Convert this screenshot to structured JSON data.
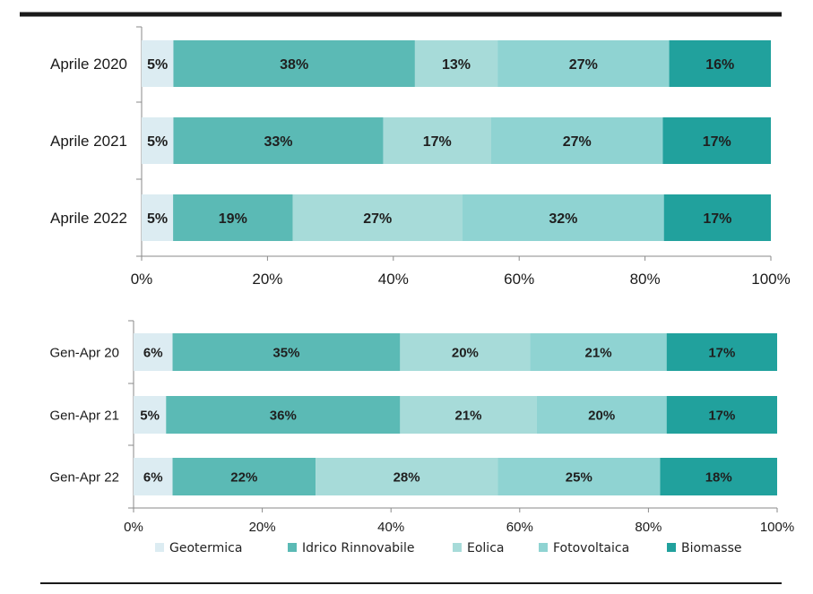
{
  "colors": {
    "Geotermica": "#dcecf2",
    "Idrico Rinnovabile": "#5bbab5",
    "Eolica": "#a7dbd9",
    "Fotovoltaica": "#8fd3d2",
    "Biomasse": "#21a19d"
  },
  "legend": [
    "Geotermica",
    "Idrico Rinnovabile",
    "Eolica",
    "Fotovoltaica",
    "Biomasse"
  ],
  "chart_data": [
    {
      "type": "bar",
      "orientation": "horizontal",
      "stacked": "percent",
      "categories": [
        "Aprile 2020",
        "Aprile 2021",
        "Aprile 2022"
      ],
      "series": [
        {
          "name": "Geotermica",
          "values": [
            5,
            5,
            5
          ]
        },
        {
          "name": "Idrico Rinnovabile",
          "values": [
            38,
            33,
            19
          ]
        },
        {
          "name": "Eolica",
          "values": [
            13,
            17,
            27
          ]
        },
        {
          "name": "Fotovoltaica",
          "values": [
            27,
            27,
            32
          ]
        },
        {
          "name": "Biomasse",
          "values": [
            16,
            17,
            17
          ]
        }
      ],
      "data_labels": [
        [
          "5%",
          "38%",
          "13%",
          "27%",
          "16%"
        ],
        [
          "5%",
          "33%",
          "17%",
          "27%",
          "17%"
        ],
        [
          "5%",
          "19%",
          "27%",
          "32%",
          "17%"
        ]
      ],
      "xticks": [
        "0%",
        "20%",
        "40%",
        "60%",
        "80%",
        "100%"
      ],
      "xlim": [
        0,
        100
      ],
      "grid": false
    },
    {
      "type": "bar",
      "orientation": "horizontal",
      "stacked": "percent",
      "categories": [
        "Gen-Apr 20",
        "Gen-Apr 21",
        "Gen-Apr 22"
      ],
      "series": [
        {
          "name": "Geotermica",
          "values": [
            6,
            5,
            6
          ]
        },
        {
          "name": "Idrico Rinnovabile",
          "values": [
            35,
            36,
            22
          ]
        },
        {
          "name": "Eolica",
          "values": [
            20,
            21,
            28
          ]
        },
        {
          "name": "Fotovoltaica",
          "values": [
            21,
            20,
            25
          ]
        },
        {
          "name": "Biomasse",
          "values": [
            17,
            17,
            18
          ]
        }
      ],
      "data_labels": [
        [
          "6%",
          "35%",
          "20%",
          "21%",
          "17%"
        ],
        [
          "5%",
          "36%",
          "21%",
          "20%",
          "17%"
        ],
        [
          "6%",
          "22%",
          "28%",
          "25%",
          "18%"
        ]
      ],
      "xticks": [
        "0%",
        "20%",
        "40%",
        "60%",
        "80%",
        "100%"
      ],
      "xlim": [
        0,
        100
      ],
      "grid": false,
      "legend_position": "bottom"
    }
  ]
}
